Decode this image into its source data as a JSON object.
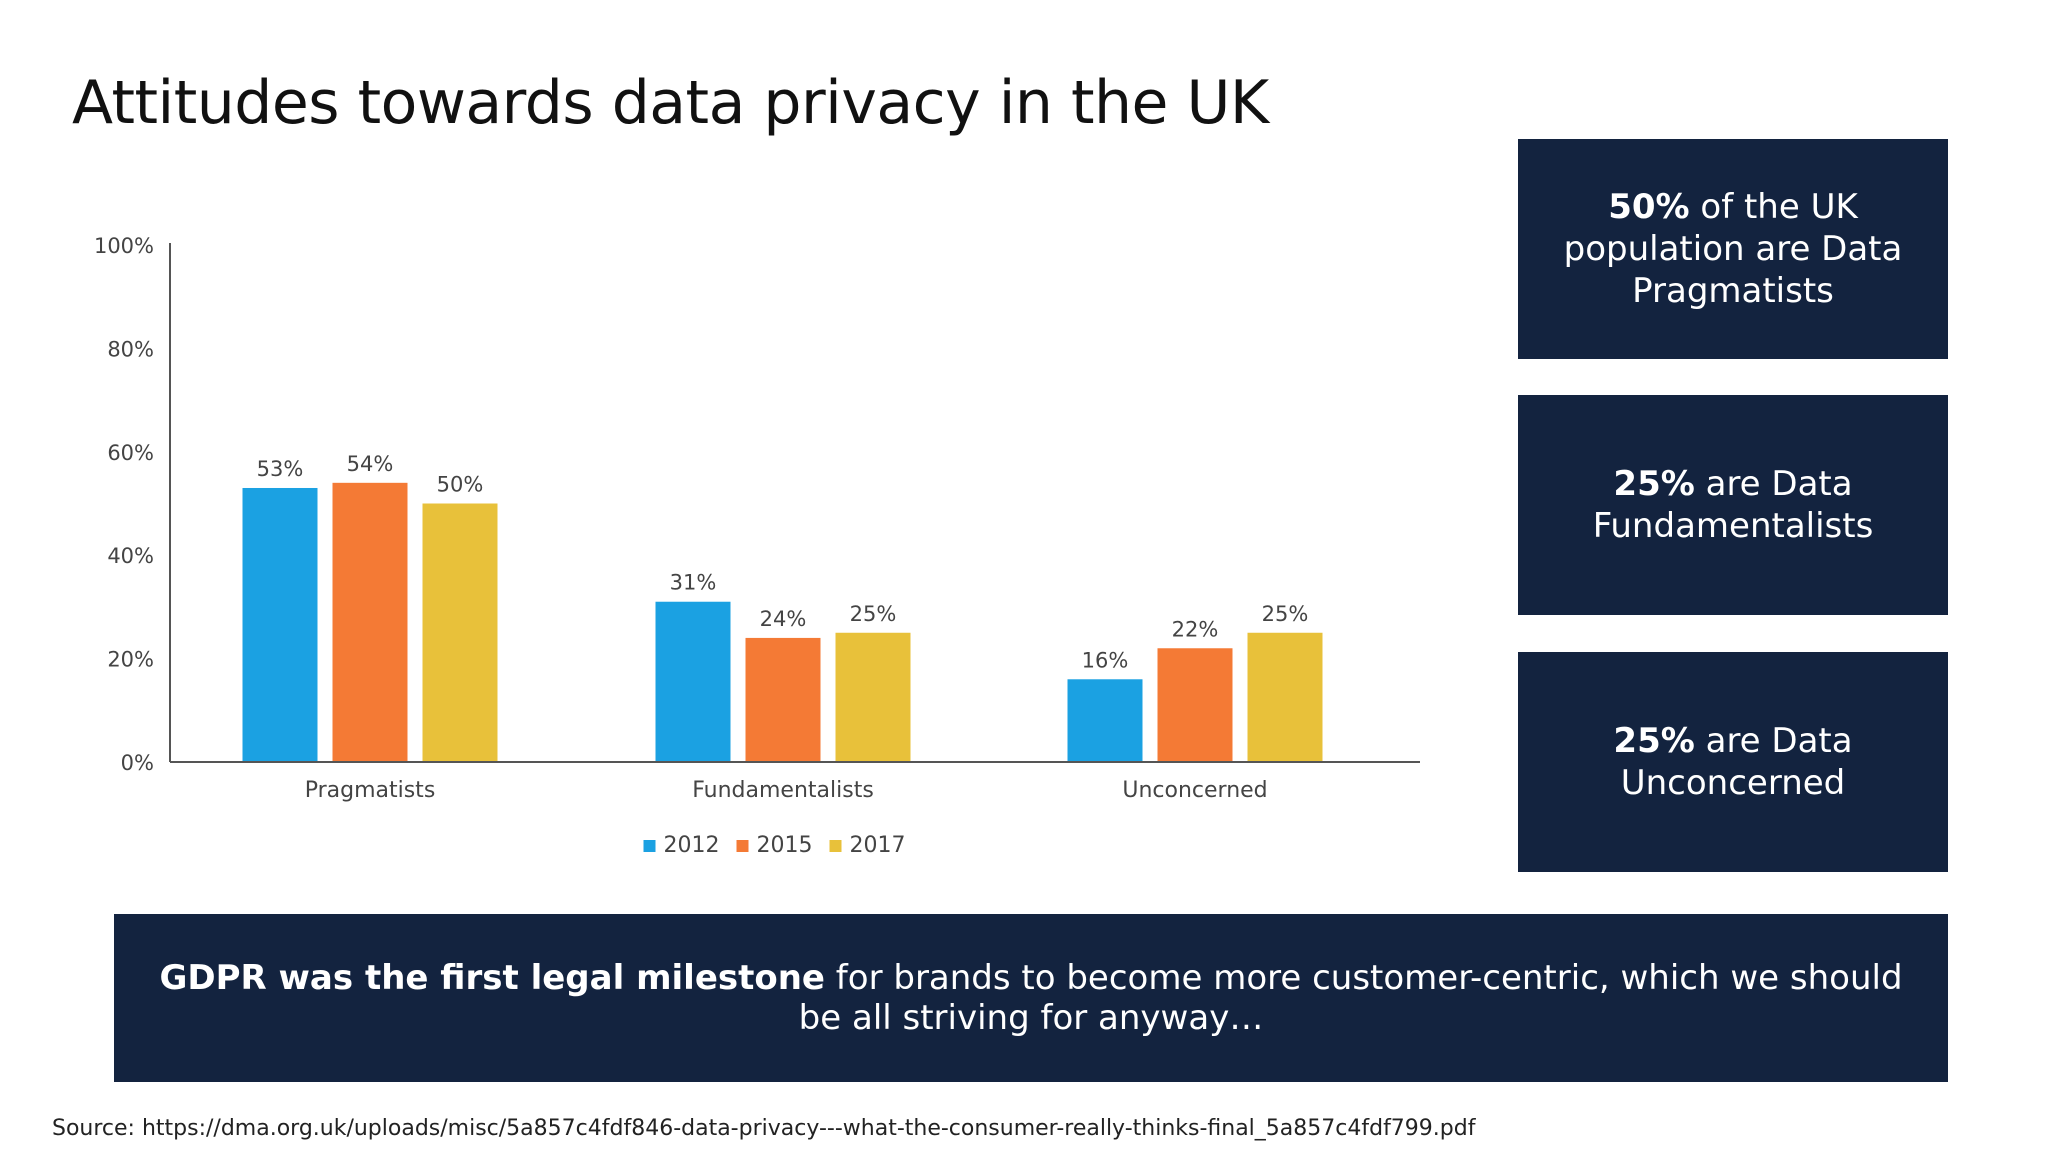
{
  "title": "Attitudes towards data privacy in the UK",
  "chart_data": {
    "type": "bar",
    "categories": [
      "Pragmatists",
      "Fundamentalists",
      "Unconcerned"
    ],
    "series": [
      {
        "name": "2012",
        "values": [
          53,
          31,
          16
        ],
        "labels": [
          "53%",
          "31%",
          "16%"
        ],
        "color": "#1ba1e2"
      },
      {
        "name": "2015",
        "values": [
          54,
          24,
          22
        ],
        "labels": [
          "54%",
          "24%",
          "22%"
        ],
        "color": "#f47a35"
      },
      {
        "name": "2017",
        "values": [
          50,
          25,
          25
        ],
        "labels": [
          "50%",
          "25%",
          "25%"
        ],
        "color": "#e8c13a"
      }
    ],
    "ylim": [
      0,
      100
    ],
    "yticks": [
      0,
      20,
      40,
      60,
      80,
      100
    ],
    "ytick_labels": [
      "0%",
      "20%",
      "40%",
      "60%",
      "80%",
      "100%"
    ],
    "xlabel": "",
    "ylabel": "",
    "grid": false,
    "legend_position": "bottom-center"
  },
  "stats": [
    {
      "bold": "50%",
      "text": " of the UK population are Data Pragmatists"
    },
    {
      "bold": "25%",
      "text": " are Data Fundamentalists"
    },
    {
      "bold": "25%",
      "text": " are Data Unconcerned"
    }
  ],
  "banner": {
    "bold": "GDPR was the first legal milestone",
    "text": " for brands to become more customer-centric, which we should be all striving for anyway…"
  },
  "source": "Source: https://dma.org.uk/uploads/misc/5a857c4fdf846-data-privacy---what-the-consumer-really-thinks-final_5a857c4fdf799.pdf",
  "colors": {
    "box_background": "#13233f",
    "axis": "#555555"
  }
}
